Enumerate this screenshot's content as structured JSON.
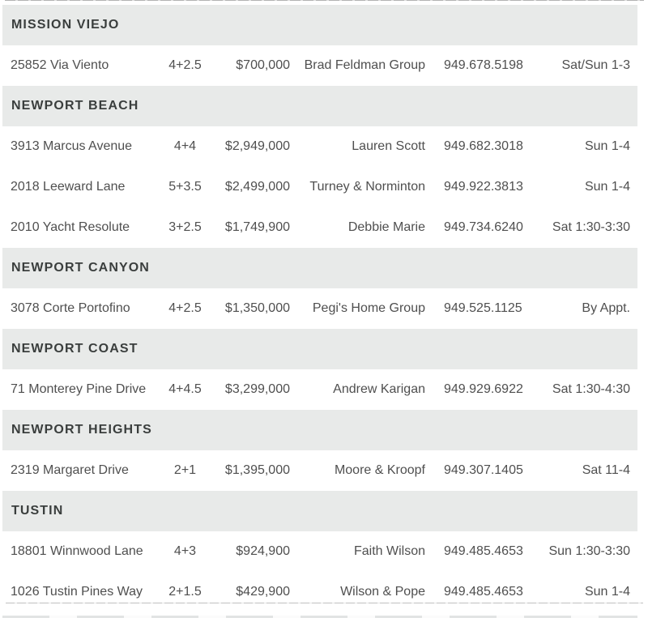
{
  "colors": {
    "page_background": "#ffffff",
    "section_header_background": "#e8eae9",
    "section_header_text": "#3a3e3d",
    "row_text": "#4f4f4f"
  },
  "table": {
    "sections": [
      {
        "title": "MISSION VIEJO",
        "rows": [
          {
            "address": "25852 Via Viento",
            "beds": "4+2.5",
            "price": "$700,000",
            "agent": "Brad Feldman Group",
            "phone": "949.678.5198",
            "time": "Sat/Sun 1-3"
          }
        ]
      },
      {
        "title": "NEWPORT BEACH",
        "rows": [
          {
            "address": "3913 Marcus Avenue",
            "beds": "4+4",
            "price": "$2,949,000",
            "agent": "Lauren Scott",
            "phone": "949.682.3018",
            "time": "Sun 1-4"
          },
          {
            "address": "2018 Leeward Lane",
            "beds": "5+3.5",
            "price": "$2,499,000",
            "agent": "Turney & Norminton",
            "phone": "949.922.3813",
            "time": "Sun 1-4"
          },
          {
            "address": "2010 Yacht Resolute",
            "beds": "3+2.5",
            "price": "$1,749,900",
            "agent": "Debbie Marie",
            "phone": "949.734.6240",
            "time": "Sat 1:30-3:30"
          }
        ]
      },
      {
        "title": "NEWPORT CANYON",
        "rows": [
          {
            "address": "3078 Corte Portofino",
            "beds": "4+2.5",
            "price": "$1,350,000",
            "agent": "Pegi's Home Group",
            "phone": "949.525.1125",
            "time": "By Appt."
          }
        ]
      },
      {
        "title": "NEWPORT COAST",
        "rows": [
          {
            "address": "71 Monterey Pine Drive",
            "beds": "4+4.5",
            "price": "$3,299,000",
            "agent": "Andrew Karigan",
            "phone": "949.929.6922",
            "time": "Sat 1:30-4:30"
          }
        ]
      },
      {
        "title": "NEWPORT HEIGHTS",
        "rows": [
          {
            "address": "2319 Margaret Drive",
            "beds": "2+1",
            "price": "$1,395,000",
            "agent": "Moore & Kroopf",
            "phone": "949.307.1405",
            "time": "Sat 11-4"
          }
        ]
      },
      {
        "title": "TUSTIN",
        "rows": [
          {
            "address": "18801 Winnwood Lane",
            "beds": "4+3",
            "price": "$924,900",
            "agent": "Faith Wilson",
            "phone": "949.485.4653",
            "time": "Sun 1:30-3:30"
          },
          {
            "address": "1026 Tustin Pines Way",
            "beds": "2+1.5",
            "price": "$429,900",
            "agent": "Wilson & Pope",
            "phone": "949.485.4653",
            "time": "Sun 1-4"
          }
        ]
      }
    ]
  }
}
